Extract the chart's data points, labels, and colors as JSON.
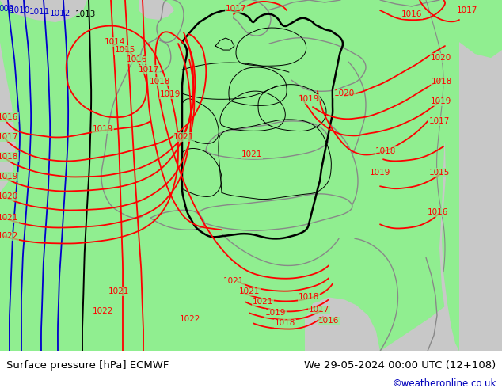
{
  "title_left": "Surface pressure [hPa] ECMWF",
  "title_right": "We 29-05-2024 00:00 UTC (12+108)",
  "credit": "©weatheronline.co.uk",
  "bg_color": "#c8c8c8",
  "land_color": "#90EE90",
  "isobar_red": "#ff0000",
  "isobar_blue": "#0000cc",
  "isobar_black": "#000000",
  "border_black": "#000000",
  "border_gray": "#888888",
  "footer_bg": "#ffffff",
  "footer_text": "#000000",
  "credit_color": "#0000bb",
  "figsize": [
    6.34,
    4.9
  ],
  "dpi": 100
}
